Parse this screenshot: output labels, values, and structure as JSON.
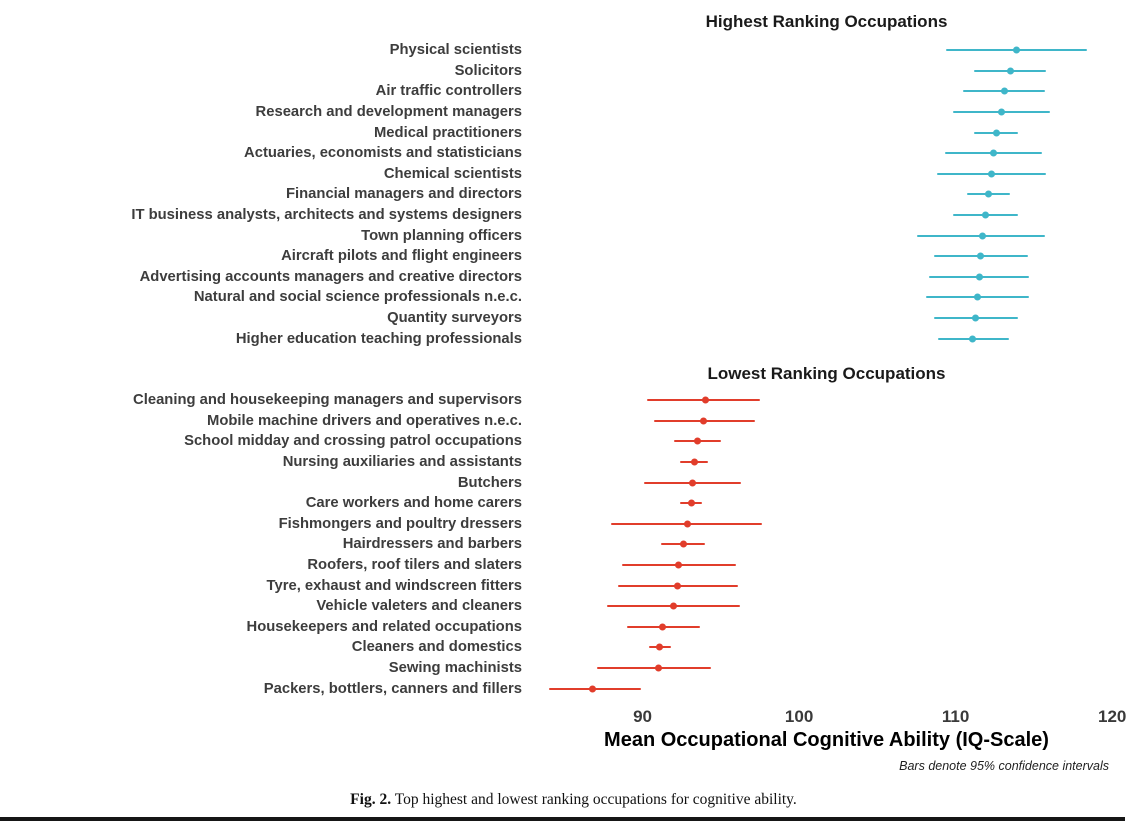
{
  "figure": {
    "caption_label": "Fig. 2.",
    "caption_text": "Top highest and lowest ranking occupations for cognitive ability.",
    "note": "Bars denote 95% confidence intervals"
  },
  "chart_data": {
    "type": "scatter",
    "subtype": "dot-plot-with-95ci-error-bars",
    "xlabel": "Mean Occupational Cognitive Ability (IQ-Scale)",
    "x_ticks": [
      90,
      100,
      110,
      120
    ],
    "x_range": [
      83,
      120.5
    ],
    "grid": false,
    "legend_position": "none",
    "panels": [
      {
        "title": "Highest Ranking Occupations",
        "color": "#3fb6c9",
        "points": [
          {
            "label": "Physical scientists",
            "mean": 113.9,
            "ci": [
              109.4,
              118.4
            ]
          },
          {
            "label": "Solicitors",
            "mean": 113.5,
            "ci": [
              111.2,
              115.8
            ]
          },
          {
            "label": "Air traffic controllers",
            "mean": 113.1,
            "ci": [
              110.5,
              115.7
            ]
          },
          {
            "label": "Research and development managers",
            "mean": 112.9,
            "ci": [
              109.8,
              116.0
            ]
          },
          {
            "label": "Medical practitioners",
            "mean": 112.6,
            "ci": [
              111.2,
              114.0
            ]
          },
          {
            "label": "Actuaries, economists and statisticians",
            "mean": 112.4,
            "ci": [
              109.3,
              115.5
            ]
          },
          {
            "label": "Chemical scientists",
            "mean": 112.3,
            "ci": [
              108.8,
              115.8
            ]
          },
          {
            "label": "Financial managers and directors",
            "mean": 112.1,
            "ci": [
              110.7,
              113.5
            ]
          },
          {
            "label": "IT business analysts, architects and systems designers",
            "mean": 111.9,
            "ci": [
              109.8,
              114.0
            ]
          },
          {
            "label": "Town planning officers",
            "mean": 111.7,
            "ci": [
              107.5,
              115.7
            ]
          },
          {
            "label": "Aircraft pilots and flight engineers",
            "mean": 111.6,
            "ci": [
              108.6,
              114.6
            ]
          },
          {
            "label": "Advertising accounts managers and creative directors",
            "mean": 111.5,
            "ci": [
              108.3,
              114.7
            ]
          },
          {
            "label": "Natural and social science professionals n.e.c.",
            "mean": 111.4,
            "ci": [
              108.1,
              114.7
            ]
          },
          {
            "label": "Quantity surveyors",
            "mean": 111.3,
            "ci": [
              108.6,
              114.0
            ]
          },
          {
            "label": "Higher education teaching professionals",
            "mean": 111.1,
            "ci": [
              108.9,
              113.4
            ]
          }
        ]
      },
      {
        "title": "Lowest Ranking Occupations",
        "color": "#e13d2b",
        "points": [
          {
            "label": "Cleaning and housekeeping managers and supervisors",
            "mean": 94.0,
            "ci": [
              90.3,
              97.5
            ]
          },
          {
            "label": "Mobile machine drivers and operatives n.e.c.",
            "mean": 93.9,
            "ci": [
              90.7,
              97.2
            ]
          },
          {
            "label": "School midday and crossing patrol occupations",
            "mean": 93.5,
            "ci": [
              92.0,
              95.0
            ]
          },
          {
            "label": "Nursing auxiliaries and assistants",
            "mean": 93.3,
            "ci": [
              92.4,
              94.2
            ]
          },
          {
            "label": "Butchers",
            "mean": 93.2,
            "ci": [
              90.1,
              96.3
            ]
          },
          {
            "label": "Care workers and home carers",
            "mean": 93.1,
            "ci": [
              92.4,
              93.8
            ]
          },
          {
            "label": "Fishmongers and poultry dressers",
            "mean": 92.9,
            "ci": [
              88.0,
              97.6
            ]
          },
          {
            "label": "Hairdressers and barbers",
            "mean": 92.6,
            "ci": [
              91.2,
              94.0
            ]
          },
          {
            "label": "Roofers, roof tilers and slaters",
            "mean": 92.3,
            "ci": [
              88.7,
              96.0
            ]
          },
          {
            "label": "Tyre, exhaust and windscreen fitters",
            "mean": 92.2,
            "ci": [
              88.4,
              96.1
            ]
          },
          {
            "label": "Vehicle valeters and cleaners",
            "mean": 92.0,
            "ci": [
              87.7,
              96.2
            ]
          },
          {
            "label": "Housekeepers and related occupations",
            "mean": 91.3,
            "ci": [
              89.0,
              93.7
            ]
          },
          {
            "label": "Cleaners and domestics",
            "mean": 91.1,
            "ci": [
              90.4,
              91.8
            ]
          },
          {
            "label": "Sewing machinists",
            "mean": 91.0,
            "ci": [
              87.1,
              94.4
            ]
          },
          {
            "label": "Packers, bottlers, canners and fillers",
            "mean": 86.8,
            "ci": [
              84.0,
              89.9
            ]
          }
        ]
      }
    ]
  }
}
